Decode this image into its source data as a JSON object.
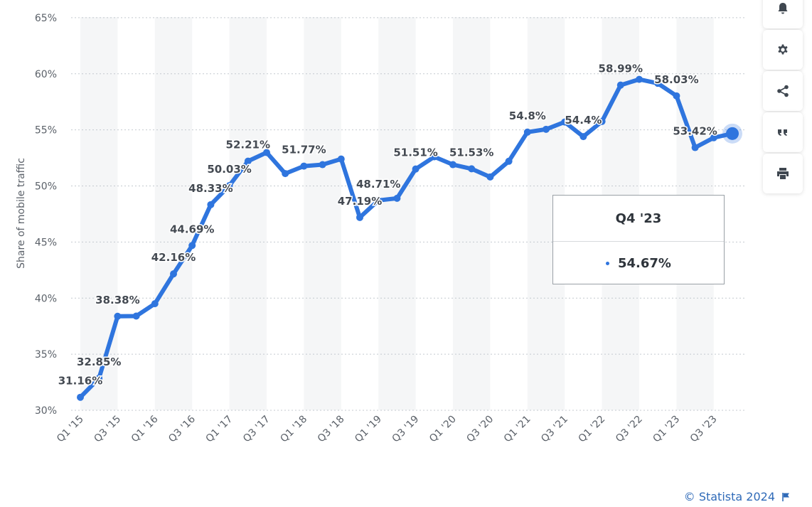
{
  "chart_data": {
    "type": "line",
    "ylabel": "Share of mobile traffic",
    "ylim": [
      30,
      65
    ],
    "yticks": [
      "30%",
      "35%",
      "40%",
      "45%",
      "50%",
      "55%",
      "60%",
      "65%"
    ],
    "x_tick_labels": [
      "Q1 '15",
      "Q3 '15",
      "Q1 '16",
      "Q3 '16",
      "Q1 '17",
      "Q3 '17",
      "Q1 '18",
      "Q3 '18",
      "Q1 '19",
      "Q3 '19",
      "Q1 '20",
      "Q3 '20",
      "Q1 '21",
      "Q3 '21",
      "Q1 '22",
      "Q3 '22",
      "Q1 '23",
      "Q3 '23"
    ],
    "x": [
      "Q1 '15",
      "Q2 '15",
      "Q3 '15",
      "Q4 '15",
      "Q1 '16",
      "Q2 '16",
      "Q3 '16",
      "Q4 '16",
      "Q1 '17",
      "Q2 '17",
      "Q3 '17",
      "Q4 '17",
      "Q1 '18",
      "Q2 '18",
      "Q3 '18",
      "Q4 '18",
      "Q1 '19",
      "Q2 '19",
      "Q3 '19",
      "Q4 '19",
      "Q1 '20",
      "Q2 '20",
      "Q3 '20",
      "Q4 '20",
      "Q1 '21",
      "Q2 '21",
      "Q3 '21",
      "Q4 '21",
      "Q1 '22",
      "Q2 '22",
      "Q3 '22",
      "Q4 '22",
      "Q1 '23",
      "Q2 '23",
      "Q3 '23",
      "Q4 '23"
    ],
    "series": [
      {
        "values": [
          31.16,
          32.85,
          38.38,
          38.4,
          39.5,
          42.16,
          44.69,
          48.33,
          50.03,
          52.21,
          52.98,
          51.1,
          51.77,
          51.9,
          52.4,
          47.19,
          48.71,
          48.9,
          51.51,
          52.6,
          51.9,
          51.53,
          50.8,
          52.2,
          54.8,
          55.05,
          55.7,
          54.4,
          55.75,
          58.99,
          59.5,
          59.15,
          58.03,
          53.42,
          54.3,
          54.67
        ],
        "color": "#2f75de"
      }
    ],
    "data_labels": [
      {
        "index": 0,
        "text": "31.16%"
      },
      {
        "index": 1,
        "text": "32.85%"
      },
      {
        "index": 2,
        "text": "38.38%"
      },
      {
        "index": 5,
        "text": "42.16%"
      },
      {
        "index": 6,
        "text": "44.69%"
      },
      {
        "index": 7,
        "text": "48.33%"
      },
      {
        "index": 8,
        "text": "50.03%"
      },
      {
        "index": 9,
        "text": "52.21%"
      },
      {
        "index": 12,
        "text": "51.77%"
      },
      {
        "index": 15,
        "text": "47.19%"
      },
      {
        "index": 16,
        "text": "48.71%"
      },
      {
        "index": 18,
        "text": "51.51%"
      },
      {
        "index": 21,
        "text": "51.53%"
      },
      {
        "index": 24,
        "text": "54.8%"
      },
      {
        "index": 27,
        "text": "54.4%"
      },
      {
        "index": 29,
        "text": "58.99%"
      },
      {
        "index": 32,
        "text": "58.03%"
      },
      {
        "index": 33,
        "text": "53.42%"
      }
    ],
    "highlight_index": 35,
    "grid": true,
    "band_color": "#f5f6f7"
  },
  "tooltip": {
    "title": "Q4 '23",
    "value": "54.67%",
    "bullet": "•"
  },
  "sidebar": {
    "buttons": [
      {
        "name": "bell-button",
        "icon": "bell-icon"
      },
      {
        "name": "settings-button",
        "icon": "gear-icon"
      },
      {
        "name": "share-button",
        "icon": "share-icon"
      },
      {
        "name": "cite-button",
        "icon": "quote-icon"
      },
      {
        "name": "print-button",
        "icon": "printer-icon"
      }
    ]
  },
  "credit": {
    "text": "© Statista 2024",
    "icon": "flag-icon"
  }
}
